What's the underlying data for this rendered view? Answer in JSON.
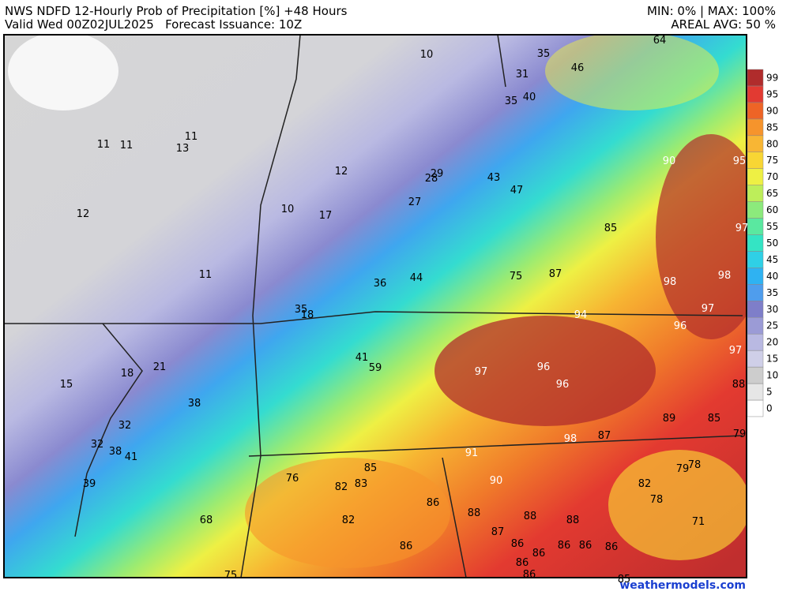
{
  "header": {
    "title": "NWS NDFD 12-Hourly Prob of Precipitation [%] +48 Hours",
    "valid": "Valid Wed 00Z02JUL2025   Forecast Issuance: 10Z",
    "minmax": "MIN: 0% | MAX: 100%",
    "areal_avg": "AREAL AVG: 50 %"
  },
  "colorbar": {
    "ticks": [
      0,
      5,
      10,
      15,
      20,
      25,
      30,
      35,
      40,
      45,
      50,
      55,
      60,
      65,
      70,
      75,
      80,
      85,
      90,
      95,
      99
    ],
    "colors": [
      "#ffffff",
      "#e6e6e6",
      "#cdcdcd",
      "#cfcfe8",
      "#b9b9e2",
      "#9b9bd6",
      "#7e7ec9",
      "#4f9ded",
      "#2fb2f2",
      "#2fd0e6",
      "#34e4c4",
      "#5ae8a0",
      "#8cea7c",
      "#bdee5a",
      "#eef044",
      "#f8d634",
      "#f8b634",
      "#f6942c",
      "#ee6426",
      "#e23a32",
      "#b02c2c"
    ]
  },
  "labels": [
    {
      "value": 64,
      "color": "#000"
    },
    {
      "value": 10,
      "color": "#000"
    },
    {
      "value": 35,
      "color": "#000"
    },
    {
      "value": 31,
      "color": "#000"
    },
    {
      "value": 46,
      "color": "#000"
    },
    {
      "value": 35,
      "color": "#000"
    },
    {
      "value": 40,
      "color": "#000"
    },
    {
      "value": 11,
      "color": "#000"
    },
    {
      "value": 11,
      "color": "#000"
    },
    {
      "value": 13,
      "color": "#000"
    },
    {
      "value": 11,
      "color": "#000"
    },
    {
      "value": 12,
      "color": "#000"
    },
    {
      "value": 29,
      "color": "#000"
    },
    {
      "value": 28,
      "color": "#000"
    },
    {
      "value": 43,
      "color": "#000"
    },
    {
      "value": 47,
      "color": "#000"
    },
    {
      "value": 12,
      "color": "#000"
    },
    {
      "value": 10,
      "color": "#000"
    },
    {
      "value": 17,
      "color": "#000"
    },
    {
      "value": 27,
      "color": "#000"
    },
    {
      "value": 85,
      "color": "#000"
    },
    {
      "value": 11,
      "color": "#000"
    },
    {
      "value": 36,
      "color": "#000"
    },
    {
      "value": 44,
      "color": "#000"
    },
    {
      "value": 75,
      "color": "#000"
    },
    {
      "value": 87,
      "color": "#000"
    },
    {
      "value": 35,
      "color": "#000"
    },
    {
      "value": 18,
      "color": "#000"
    },
    {
      "value": 41,
      "color": "#000"
    },
    {
      "value": 59,
      "color": "#000"
    },
    {
      "value": 15,
      "color": "#000"
    },
    {
      "value": 18,
      "color": "#000"
    },
    {
      "value": 21,
      "color": "#000"
    },
    {
      "value": 38,
      "color": "#000"
    },
    {
      "value": 88,
      "color": "#000"
    },
    {
      "value": 89,
      "color": "#000"
    },
    {
      "value": 85,
      "color": "#000"
    },
    {
      "value": 87,
      "color": "#000"
    },
    {
      "value": 79,
      "color": "#000"
    },
    {
      "value": 32,
      "color": "#000"
    },
    {
      "value": 32,
      "color": "#000"
    },
    {
      "value": 38,
      "color": "#000"
    },
    {
      "value": 41,
      "color": "#000"
    },
    {
      "value": 39,
      "color": "#000"
    },
    {
      "value": 85,
      "color": "#000"
    },
    {
      "value": 76,
      "color": "#000"
    },
    {
      "value": 82,
      "color": "#000"
    },
    {
      "value": 83,
      "color": "#000"
    },
    {
      "value": 86,
      "color": "#000"
    },
    {
      "value": 82,
      "color": "#000"
    },
    {
      "value": 79,
      "color": "#000"
    },
    {
      "value": 78,
      "color": "#000"
    },
    {
      "value": 78,
      "color": "#000"
    },
    {
      "value": 88,
      "color": "#000"
    },
    {
      "value": 88,
      "color": "#000"
    },
    {
      "value": 88,
      "color": "#000"
    },
    {
      "value": 87,
      "color": "#000"
    },
    {
      "value": 71,
      "color": "#000"
    },
    {
      "value": 68,
      "color": "#000"
    },
    {
      "value": 82,
      "color": "#000"
    },
    {
      "value": 86,
      "color": "#000"
    },
    {
      "value": 86,
      "color": "#000"
    },
    {
      "value": 86,
      "color": "#000"
    },
    {
      "value": 86,
      "color": "#000"
    },
    {
      "value": 86,
      "color": "#000"
    },
    {
      "value": 86,
      "color": "#000"
    },
    {
      "value": 86,
      "color": "#000"
    },
    {
      "value": 75,
      "color": "#000"
    },
    {
      "value": 86,
      "color": "#000"
    },
    {
      "value": 85,
      "color": "#000"
    },
    {
      "value": 90,
      "color": "#fff"
    },
    {
      "value": 95,
      "color": "#fff"
    },
    {
      "value": 97,
      "color": "#fff"
    },
    {
      "value": 98,
      "color": "#fff"
    },
    {
      "value": 98,
      "color": "#fff"
    },
    {
      "value": 97,
      "color": "#fff"
    },
    {
      "value": 94,
      "color": "#fff"
    },
    {
      "value": 96,
      "color": "#fff"
    },
    {
      "value": 97,
      "color": "#fff"
    },
    {
      "value": 97,
      "color": "#fff"
    },
    {
      "value": 96,
      "color": "#fff"
    },
    {
      "value": 96,
      "color": "#fff"
    },
    {
      "value": 98,
      "color": "#fff"
    },
    {
      "value": 91,
      "color": "#fff"
    },
    {
      "value": 90,
      "color": "#fff"
    }
  ],
  "watermark": "weathermodels.com"
}
